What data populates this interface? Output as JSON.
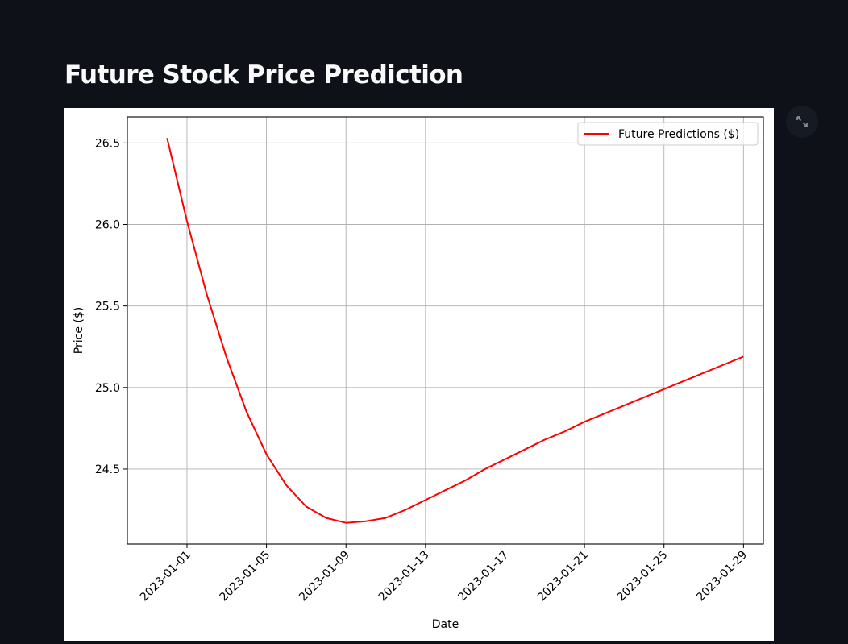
{
  "header": {
    "title": "Future Stock Price Prediction"
  },
  "toolbar": {
    "fullscreen_icon": "expand-arrows-icon"
  },
  "colors": {
    "page_bg": "#0e1117",
    "line": "#ff0000",
    "grid": "#b0b0b0"
  },
  "chart_data": {
    "type": "line",
    "title": "",
    "xlabel": "Date",
    "ylabel": "Price ($)",
    "x_tick_labels": [
      "2023-01-01",
      "2023-01-05",
      "2023-01-09",
      "2023-01-13",
      "2023-01-17",
      "2023-01-21",
      "2023-01-25",
      "2023-01-29"
    ],
    "y_tick_labels": [
      "24.5",
      "25.0",
      "25.5",
      "26.0",
      "26.5"
    ],
    "ylim": [
      24.04,
      26.66
    ],
    "xlim": [
      "2022-12-29",
      "2023-01-30"
    ],
    "grid": true,
    "legend_position": "top-right",
    "series": [
      {
        "name": "Future Predictions ($)",
        "color": "#ff0000",
        "x": [
          "2022-12-31",
          "2023-01-01",
          "2023-01-02",
          "2023-01-03",
          "2023-01-04",
          "2023-01-05",
          "2023-01-06",
          "2023-01-07",
          "2023-01-08",
          "2023-01-09",
          "2023-01-10",
          "2023-01-11",
          "2023-01-12",
          "2023-01-13",
          "2023-01-14",
          "2023-01-15",
          "2023-01-16",
          "2023-01-17",
          "2023-01-18",
          "2023-01-19",
          "2023-01-20",
          "2023-01-21",
          "2023-01-22",
          "2023-01-23",
          "2023-01-24",
          "2023-01-25",
          "2023-01-26",
          "2023-01-27",
          "2023-01-28",
          "2023-01-29"
        ],
        "values": [
          26.53,
          26.02,
          25.57,
          25.18,
          24.85,
          24.59,
          24.4,
          24.27,
          24.2,
          24.17,
          24.18,
          24.2,
          24.25,
          24.31,
          24.37,
          24.43,
          24.5,
          24.56,
          24.62,
          24.68,
          24.73,
          24.79,
          24.84,
          24.89,
          24.94,
          24.99,
          25.04,
          25.09,
          25.14,
          25.19
        ]
      }
    ]
  }
}
